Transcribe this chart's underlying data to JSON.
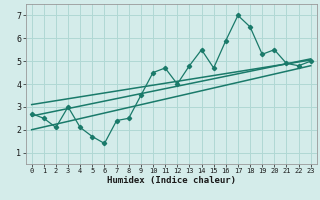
{
  "xlabel": "Humidex (Indice chaleur)",
  "xlim": [
    -0.5,
    23.5
  ],
  "ylim": [
    0.5,
    7.5
  ],
  "xticks": [
    0,
    1,
    2,
    3,
    4,
    5,
    6,
    7,
    8,
    9,
    10,
    11,
    12,
    13,
    14,
    15,
    16,
    17,
    18,
    19,
    20,
    21,
    22,
    23
  ],
  "yticks": [
    1,
    2,
    3,
    4,
    5,
    6,
    7
  ],
  "bg_color": "#d4ecea",
  "line_color": "#1a7a6a",
  "grid_color": "#b0d8d4",
  "main_data_x": [
    0,
    1,
    2,
    3,
    4,
    5,
    6,
    7,
    8,
    9,
    10,
    11,
    12,
    13,
    14,
    15,
    16,
    17,
    18,
    19,
    20,
    21,
    22,
    23
  ],
  "main_data_y": [
    2.7,
    2.5,
    2.1,
    3.0,
    2.1,
    1.7,
    1.4,
    2.4,
    2.5,
    3.5,
    4.5,
    4.7,
    4.0,
    4.8,
    5.5,
    4.7,
    5.9,
    7.0,
    6.5,
    5.3,
    5.5,
    4.9,
    4.8,
    5.0
  ],
  "trend1_x": [
    0,
    23
  ],
  "trend1_y": [
    3.1,
    5.05
  ],
  "trend2_x": [
    0,
    23
  ],
  "trend2_y": [
    2.6,
    5.1
  ],
  "trend3_x": [
    0,
    23
  ],
  "trend3_y": [
    2.0,
    4.8
  ],
  "xtick_fontsize": 5.0,
  "ytick_fontsize": 6.0,
  "xlabel_fontsize": 6.5
}
